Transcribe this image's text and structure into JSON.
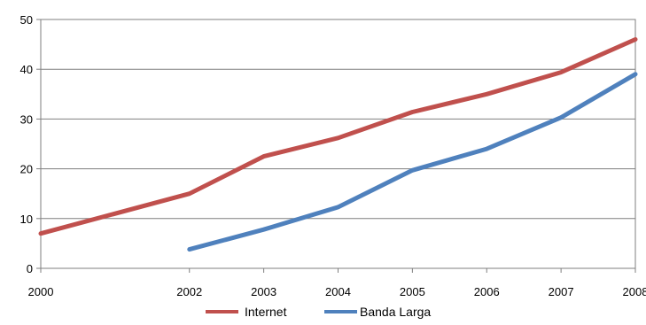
{
  "chart_data": {
    "type": "line",
    "title": "",
    "xlabel": "",
    "ylabel": "",
    "x_ticks": [
      "2000",
      "2002",
      "2003",
      "2004",
      "2005",
      "2006",
      "2007",
      "2008"
    ],
    "y_ticks": [
      "0",
      "10",
      "20",
      "30",
      "40",
      "50"
    ],
    "xlim": [
      2000,
      2008
    ],
    "ylim": [
      0,
      50
    ],
    "grid": "horizontal",
    "legend_position": "bottom",
    "series": [
      {
        "name": "Internet",
        "color": "#c0504d",
        "x": [
          2000,
          2002,
          2003,
          2004,
          2005,
          2006,
          2007,
          2008
        ],
        "y": [
          7.0,
          15.0,
          22.5,
          26.2,
          31.4,
          35.0,
          39.4,
          46.0
        ]
      },
      {
        "name": "Banda Larga",
        "color": "#4f81bd",
        "x": [
          2002,
          2003,
          2004,
          2005,
          2006,
          2007,
          2008
        ],
        "y": [
          3.8,
          7.8,
          12.3,
          19.7,
          24.0,
          30.3,
          39.0
        ]
      }
    ]
  }
}
